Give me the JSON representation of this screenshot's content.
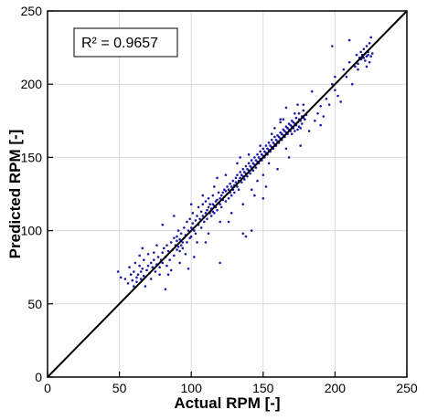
{
  "chart_data": {
    "type": "scatter",
    "xlabel": "Actual RPM [-]",
    "ylabel": "Predicted RPM [-]",
    "xlim": [
      0,
      250
    ],
    "ylim": [
      0,
      250
    ],
    "xticks": [
      "0",
      "50",
      "100",
      "150",
      "200",
      "250"
    ],
    "yticks": [
      "0",
      "50",
      "100",
      "150",
      "200",
      "250"
    ],
    "grid": true,
    "annotation": "R² = 0.9657",
    "annotation_placement": "top-left",
    "reference_line": {
      "from": [
        0,
        0
      ],
      "to": [
        250,
        250
      ],
      "color": "#000000"
    },
    "point_color": "#1a1aa6",
    "series": [
      {
        "points": [
          [
            49,
            72
          ],
          [
            51,
            68
          ],
          [
            54,
            67
          ],
          [
            56,
            64
          ],
          [
            57,
            75
          ],
          [
            58,
            70
          ],
          [
            59,
            66
          ],
          [
            60,
            62
          ],
          [
            60,
            72
          ],
          [
            61,
            78
          ],
          [
            62,
            68
          ],
          [
            62,
            65
          ],
          [
            63,
            70
          ],
          [
            64,
            76
          ],
          [
            64,
            83
          ],
          [
            65,
            72
          ],
          [
            65,
            67
          ],
          [
            66,
            74
          ],
          [
            67,
            80
          ],
          [
            67,
            69
          ],
          [
            68,
            62
          ],
          [
            69,
            73
          ],
          [
            70,
            76
          ],
          [
            70,
            84
          ],
          [
            71,
            71
          ],
          [
            72,
            78
          ],
          [
            72,
            67
          ],
          [
            73,
            75
          ],
          [
            74,
            80
          ],
          [
            74,
            85
          ],
          [
            75,
            72
          ],
          [
            76,
            77
          ],
          [
            76,
            90
          ],
          [
            77,
            82
          ],
          [
            78,
            75
          ],
          [
            78,
            70
          ],
          [
            79,
            80
          ],
          [
            80,
            85
          ],
          [
            80,
            78
          ],
          [
            81,
            88
          ],
          [
            82,
            82
          ],
          [
            83,
            76
          ],
          [
            83,
            90
          ],
          [
            84,
            86
          ],
          [
            85,
            80
          ],
          [
            86,
            92
          ],
          [
            86,
            73
          ],
          [
            87,
            87
          ],
          [
            88,
            83
          ],
          [
            88,
            95
          ],
          [
            89,
            90
          ],
          [
            90,
            87
          ],
          [
            90,
            93
          ],
          [
            90,
            96
          ],
          [
            91,
            89
          ],
          [
            91,
            100
          ],
          [
            92,
            86
          ],
          [
            92,
            94
          ],
          [
            93,
            90
          ],
          [
            93,
            98
          ],
          [
            94,
            92
          ],
          [
            94,
            88
          ],
          [
            95,
            95
          ],
          [
            95,
            102
          ],
          [
            96,
            97
          ],
          [
            97,
            92
          ],
          [
            97,
            106
          ],
          [
            98,
            100
          ],
          [
            99,
            95
          ],
          [
            99,
            108
          ],
          [
            100,
            102
          ],
          [
            100,
            96
          ],
          [
            101,
            105
          ],
          [
            101,
            112
          ],
          [
            102,
            100
          ],
          [
            103,
            107
          ],
          [
            103,
            98
          ],
          [
            104,
            110
          ],
          [
            105,
            104
          ],
          [
            105,
            116
          ],
          [
            106,
            108
          ],
          [
            107,
            102
          ],
          [
            107,
            113
          ],
          [
            108,
            110
          ],
          [
            108,
            118
          ],
          [
            109,
            106
          ],
          [
            110,
            112
          ],
          [
            110,
            120
          ],
          [
            111,
            114
          ],
          [
            111,
            108
          ],
          [
            112,
            116
          ],
          [
            112,
            122
          ],
          [
            113,
            112
          ],
          [
            113,
            118
          ],
          [
            114,
            115
          ],
          [
            114,
            110
          ],
          [
            115,
            118
          ],
          [
            115,
            113
          ],
          [
            115,
            124
          ],
          [
            116,
            117
          ],
          [
            116,
            112
          ],
          [
            117,
            120
          ],
          [
            117,
            116
          ],
          [
            118,
            121
          ],
          [
            118,
            114
          ],
          [
            119,
            119
          ],
          [
            119,
            126
          ],
          [
            120,
            122
          ],
          [
            120,
            118
          ],
          [
            121,
            124
          ],
          [
            121,
            116
          ],
          [
            122,
            126
          ],
          [
            122,
            121
          ],
          [
            123,
            123
          ],
          [
            123,
            128
          ],
          [
            124,
            120
          ],
          [
            124,
            127
          ],
          [
            125,
            125
          ],
          [
            125,
            130
          ],
          [
            126,
            122
          ],
          [
            126,
            128
          ],
          [
            127,
            126
          ],
          [
            127,
            132
          ],
          [
            128,
            124
          ],
          [
            128,
            130
          ],
          [
            129,
            128
          ],
          [
            129,
            134
          ],
          [
            130,
            131
          ],
          [
            130,
            126
          ],
          [
            131,
            133
          ],
          [
            131,
            136
          ],
          [
            132,
            130
          ],
          [
            132,
            138
          ],
          [
            133,
            134
          ],
          [
            133,
            128
          ],
          [
            134,
            136
          ],
          [
            134,
            140
          ],
          [
            135,
            133
          ],
          [
            135,
            138
          ],
          [
            136,
            137
          ],
          [
            136,
            142
          ],
          [
            137,
            135
          ],
          [
            137,
            140
          ],
          [
            138,
            139
          ],
          [
            138,
            144
          ],
          [
            139,
            137
          ],
          [
            139,
            142
          ],
          [
            140,
            141
          ],
          [
            140,
            146
          ],
          [
            141,
            139
          ],
          [
            141,
            144
          ],
          [
            142,
            143
          ],
          [
            142,
            148
          ],
          [
            143,
            141
          ],
          [
            143,
            146
          ],
          [
            144,
            145
          ],
          [
            144,
            150
          ],
          [
            145,
            143
          ],
          [
            145,
            148
          ],
          [
            146,
            147
          ],
          [
            146,
            152
          ],
          [
            147,
            146
          ],
          [
            147,
            150
          ],
          [
            148,
            149
          ],
          [
            148,
            154
          ],
          [
            149,
            148
          ],
          [
            149,
            152
          ],
          [
            150,
            151
          ],
          [
            150,
            156
          ],
          [
            151,
            150
          ],
          [
            151,
            154
          ],
          [
            152,
            153
          ],
          [
            152,
            158
          ],
          [
            153,
            152
          ],
          [
            153,
            156
          ],
          [
            154,
            155
          ],
          [
            154,
            160
          ],
          [
            155,
            154
          ],
          [
            155,
            158
          ],
          [
            156,
            157
          ],
          [
            156,
            162
          ],
          [
            157,
            156
          ],
          [
            157,
            160
          ],
          [
            158,
            159
          ],
          [
            158,
            164
          ],
          [
            159,
            158
          ],
          [
            159,
            162
          ],
          [
            160,
            161
          ],
          [
            160,
            165
          ],
          [
            161,
            160
          ],
          [
            161,
            164
          ],
          [
            162,
            163
          ],
          [
            162,
            167
          ],
          [
            163,
            162
          ],
          [
            163,
            166
          ],
          [
            164,
            165
          ],
          [
            164,
            169
          ],
          [
            165,
            164
          ],
          [
            165,
            168
          ],
          [
            166,
            167
          ],
          [
            166,
            171
          ],
          [
            167,
            166
          ],
          [
            167,
            170
          ],
          [
            168,
            169
          ],
          [
            168,
            173
          ],
          [
            169,
            168
          ],
          [
            169,
            172
          ],
          [
            170,
            171
          ],
          [
            170,
            175
          ],
          [
            170,
            166
          ],
          [
            171,
            170
          ],
          [
            171,
            174
          ],
          [
            172,
            173
          ],
          [
            172,
            168
          ],
          [
            173,
            172
          ],
          [
            173,
            177
          ],
          [
            174,
            174
          ],
          [
            174,
            169
          ],
          [
            175,
            176
          ],
          [
            175,
            171
          ],
          [
            175,
            180
          ],
          [
            176,
            175
          ],
          [
            176,
            170
          ],
          [
            177,
            178
          ],
          [
            177,
            173
          ],
          [
            178,
            177
          ],
          [
            178,
            182
          ],
          [
            179,
            176
          ],
          [
            180,
            179
          ],
          [
            88,
            110
          ],
          [
            92,
            78
          ],
          [
            96,
            84
          ],
          [
            100,
            118
          ],
          [
            104,
            92
          ],
          [
            108,
            124
          ],
          [
            112,
            98
          ],
          [
            116,
            130
          ],
          [
            120,
            106
          ],
          [
            124,
            138
          ],
          [
            128,
            112
          ],
          [
            132,
            146
          ],
          [
            136,
            118
          ],
          [
            140,
            152
          ],
          [
            144,
            124
          ],
          [
            148,
            158
          ],
          [
            152,
            130
          ],
          [
            156,
            166
          ],
          [
            160,
            142
          ],
          [
            164,
            176
          ],
          [
            168,
            150
          ],
          [
            172,
            180
          ],
          [
            176,
            158
          ],
          [
            80,
            104
          ],
          [
            84,
            70
          ],
          [
            110,
            92
          ],
          [
            118,
            136
          ],
          [
            126,
            106
          ],
          [
            134,
            150
          ],
          [
            138,
            96
          ],
          [
            142,
            128
          ],
          [
            146,
            134
          ],
          [
            150,
            138
          ],
          [
            154,
            146
          ],
          [
            158,
            170
          ],
          [
            162,
            176
          ],
          [
            166,
            156
          ],
          [
            186,
            175
          ],
          [
            188,
            180
          ],
          [
            190,
            185
          ],
          [
            192,
            178
          ],
          [
            194,
            190
          ],
          [
            196,
            186
          ],
          [
            198,
            200
          ],
          [
            200,
            196
          ],
          [
            200,
            205
          ],
          [
            202,
            192
          ],
          [
            204,
            188
          ],
          [
            206,
            210
          ],
          [
            208,
            205
          ],
          [
            210,
            215
          ],
          [
            212,
            200
          ],
          [
            214,
            212
          ],
          [
            215,
            220
          ],
          [
            216,
            214
          ],
          [
            218,
            222
          ],
          [
            219,
            218
          ],
          [
            220,
            224
          ],
          [
            221,
            216
          ],
          [
            222,
            226
          ],
          [
            223,
            220
          ],
          [
            224,
            228
          ],
          [
            225,
            219
          ],
          [
            225,
            232
          ],
          [
            226,
            221
          ],
          [
            217,
            218
          ],
          [
            218,
            217
          ],
          [
            219,
            220
          ],
          [
            220,
            218
          ],
          [
            221,
            221
          ],
          [
            222,
            219
          ],
          [
            223,
            222
          ],
          [
            216,
            210
          ],
          [
            222,
            212
          ],
          [
            224,
            215
          ],
          [
            198,
            226
          ],
          [
            210,
            230
          ],
          [
            184,
            195
          ],
          [
            190,
            172
          ],
          [
            182,
            168
          ],
          [
            178,
            186
          ],
          [
            174,
            186
          ],
          [
            166,
            184
          ],
          [
            162,
            174
          ],
          [
            150,
            122
          ],
          [
            142,
            100
          ],
          [
            136,
            98
          ],
          [
            120,
            78
          ],
          [
            102,
            82
          ],
          [
            98,
            74
          ],
          [
            82,
            60
          ],
          [
            66,
            88
          ]
        ]
      }
    ]
  }
}
